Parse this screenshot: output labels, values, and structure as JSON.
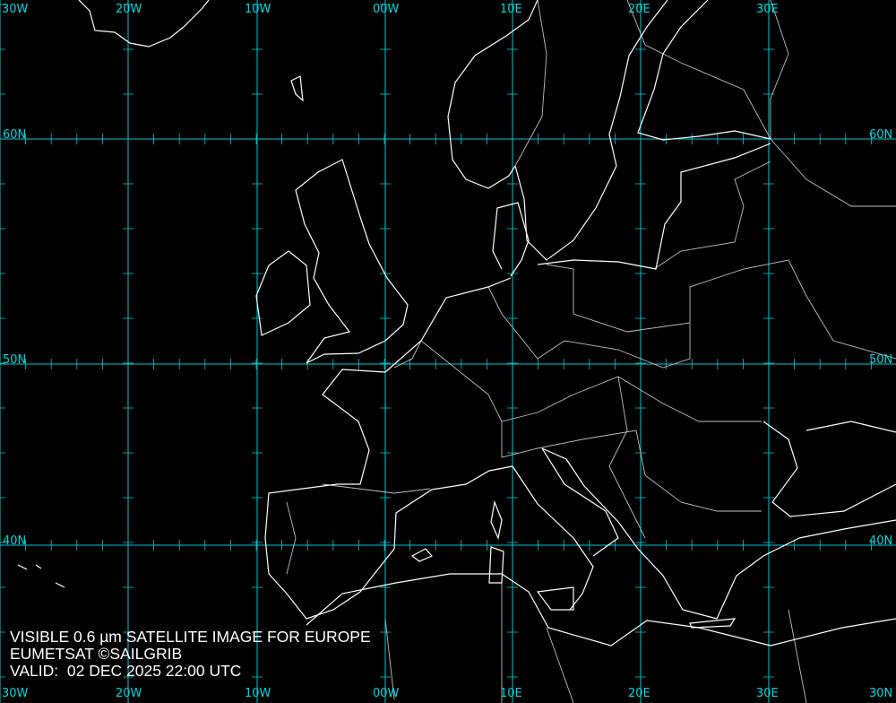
{
  "map": {
    "product": "VISIBLE 0.6 µm SATELLITE IMAGE FOR EUROPE",
    "credit": "EUMETSAT ©SAILGRIB",
    "valid": "VALID:  02 DEC 2025 22:00 UTC",
    "colors": {
      "background": "#000000",
      "grid": "#00c8d2",
      "coast": "#ffffff",
      "borders": "#bfbfbf",
      "labels": "#00d8e0"
    },
    "longitude_labels": [
      "30W",
      "20W",
      "10W",
      "00W",
      "10E",
      "20E",
      "30E"
    ],
    "latitude_labels": [
      "60N",
      "50N",
      "40N",
      "30N"
    ]
  }
}
